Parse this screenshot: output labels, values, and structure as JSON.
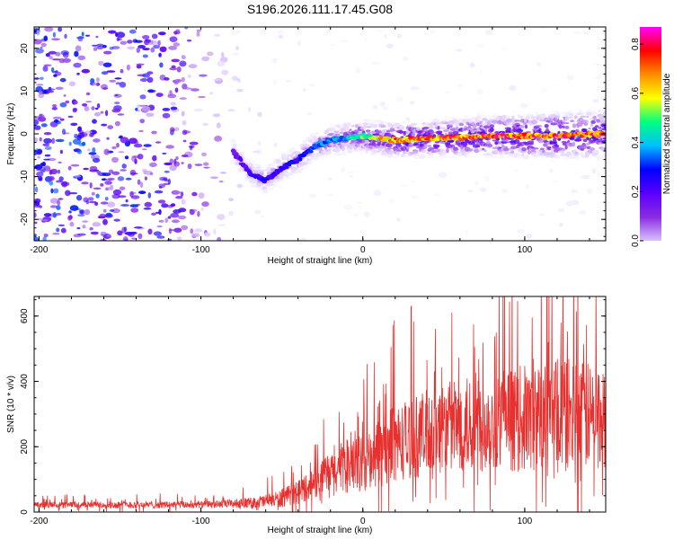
{
  "figure_title": "S196.2026.111.17.45.G08",
  "chart_data": [
    {
      "type": "heatmap",
      "name": "spectrogram",
      "xlabel": "Height of straight line (km)",
      "ylabel": "Frequency (Hz)",
      "xlim": [
        -203,
        150
      ],
      "ylim": [
        -25,
        25
      ],
      "xticks": [
        -200,
        -100,
        0,
        100
      ],
      "yticks": [
        -20,
        -10,
        0,
        10,
        20
      ],
      "colorbar": {
        "label": "Normalized spectral amplitude",
        "range": [
          0,
          0.87
        ],
        "ticks": [
          0.0,
          0.2,
          0.4,
          0.6,
          0.8
        ],
        "colormap": [
          "#ffffff",
          "#d9c2ff",
          "#8a2be2",
          "#5a00ff",
          "#0000ff",
          "#00bfff",
          "#00ff7f",
          "#ffff00",
          "#ff8c00",
          "#ff0000",
          "#ff00ff"
        ]
      },
      "signal_track": [
        {
          "x": -80,
          "f": -4,
          "amp": 0.25
        },
        {
          "x": -70,
          "f": -9,
          "amp": 0.3
        },
        {
          "x": -60,
          "f": -11,
          "amp": 0.35
        },
        {
          "x": -50,
          "f": -8,
          "amp": 0.35
        },
        {
          "x": -40,
          "f": -6,
          "amp": 0.35
        },
        {
          "x": -30,
          "f": -3,
          "amp": 0.4
        },
        {
          "x": -20,
          "f": -1.5,
          "amp": 0.45
        },
        {
          "x": -10,
          "f": -1,
          "amp": 0.5
        },
        {
          "x": 0,
          "f": -0.5,
          "amp": 0.6
        },
        {
          "x": 20,
          "f": -1.5,
          "amp": 0.75
        },
        {
          "x": 50,
          "f": -1,
          "amp": 0.8
        },
        {
          "x": 80,
          "f": -0.5,
          "amp": 0.82
        },
        {
          "x": 110,
          "f": -0.5,
          "amp": 0.82
        },
        {
          "x": 150,
          "f": 0,
          "amp": 0.8
        }
      ],
      "noise_density": [
        {
          "x": -203,
          "level": 0.35
        },
        {
          "x": -120,
          "level": 0.3
        },
        {
          "x": -95,
          "level": 0.15
        },
        {
          "x": -75,
          "level": 0.06
        },
        {
          "x": -50,
          "level": 0.04
        },
        {
          "x": 0,
          "level": 0.03
        },
        {
          "x": 150,
          "level": 0.03
        }
      ],
      "signal_band_halfwidth_hz": [
        {
          "x": -80,
          "w": 3
        },
        {
          "x": 0,
          "w": 4
        },
        {
          "x": 150,
          "w": 6
        }
      ]
    },
    {
      "type": "line",
      "name": "snr",
      "xlabel": "Height of straight line (km)",
      "ylabel": "SNR (10 * v/v)",
      "xlim": [
        -203,
        150
      ],
      "ylim": [
        0,
        660
      ],
      "xticks": [
        -200,
        -100,
        0,
        100
      ],
      "yticks": [
        0,
        200,
        400,
        600
      ],
      "color": "#e8302e",
      "series": [
        {
          "name": "SNR",
          "envelope": [
            {
              "x": -203,
              "mean": 22,
              "spread": 15
            },
            {
              "x": -150,
              "mean": 22,
              "spread": 18
            },
            {
              "x": -100,
              "mean": 22,
              "spread": 18
            },
            {
              "x": -70,
              "mean": 28,
              "spread": 25
            },
            {
              "x": -50,
              "mean": 40,
              "spread": 45
            },
            {
              "x": -35,
              "mean": 75,
              "spread": 70
            },
            {
              "x": -20,
              "mean": 120,
              "spread": 100
            },
            {
              "x": 0,
              "mean": 150,
              "spread": 150
            },
            {
              "x": 20,
              "mean": 210,
              "spread": 200
            },
            {
              "x": 50,
              "mean": 260,
              "spread": 230
            },
            {
              "x": 80,
              "mean": 280,
              "spread": 260
            },
            {
              "x": 110,
              "mean": 290,
              "spread": 280
            },
            {
              "x": 130,
              "mean": 300,
              "spread": 300
            },
            {
              "x": 150,
              "mean": 280,
              "spread": 250
            }
          ]
        }
      ]
    }
  ]
}
